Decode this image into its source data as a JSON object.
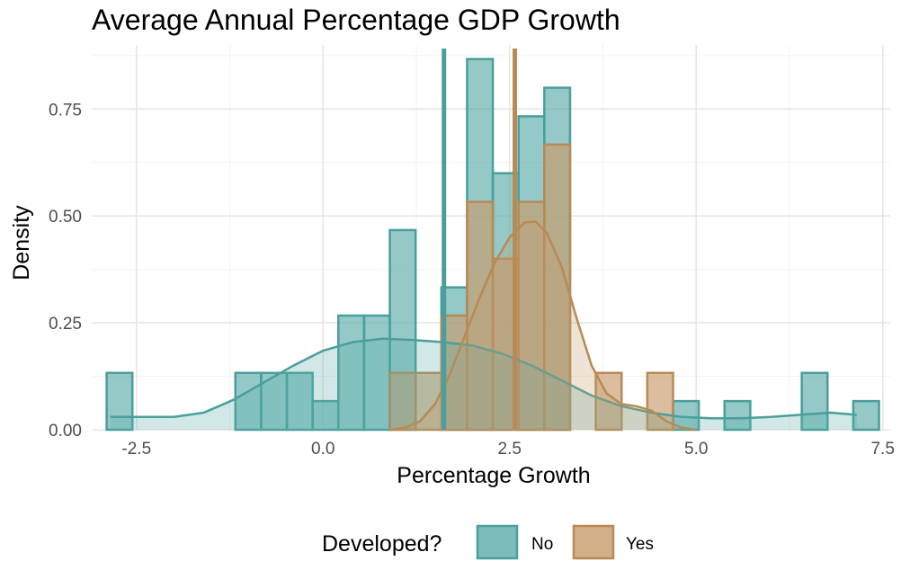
{
  "chart_data": {
    "type": "histogram",
    "title": "Average Annual Percentage GDP Growth",
    "xlabel": "Percentage Growth",
    "ylabel": "Density",
    "xlim": [
      -3.1,
      7.6
    ],
    "ylim": [
      0,
      0.9
    ],
    "x_ticks": [
      {
        "value": -2.5,
        "label": "-2.5"
      },
      {
        "value": 0.0,
        "label": "0.0"
      },
      {
        "value": 2.5,
        "label": "2.5"
      },
      {
        "value": 5.0,
        "label": "5.0"
      },
      {
        "value": 7.5,
        "label": "7.5"
      }
    ],
    "y_ticks": [
      {
        "value": 0.0,
        "label": "0.00"
      },
      {
        "value": 0.25,
        "label": "0.25"
      },
      {
        "value": 0.5,
        "label": "0.50"
      },
      {
        "value": 0.75,
        "label": "0.75"
      }
    ],
    "grid": true,
    "legend": {
      "title": "Developed?",
      "position": "bottom"
    },
    "bin_width": 0.345,
    "series": [
      {
        "name": "No",
        "fill": "#5aaca9",
        "stroke": "#4a9e9b",
        "mean": 1.62,
        "bins": [
          {
            "x0": -2.9,
            "density": 0.133
          },
          {
            "x0": -1.175,
            "density": 0.133
          },
          {
            "x0": -0.83,
            "density": 0.133
          },
          {
            "x0": -0.485,
            "density": 0.133
          },
          {
            "x0": -0.14,
            "density": 0.067
          },
          {
            "x0": 0.205,
            "density": 0.267
          },
          {
            "x0": 0.55,
            "density": 0.267
          },
          {
            "x0": 0.895,
            "density": 0.467
          },
          {
            "x0": 1.585,
            "density": 0.333
          },
          {
            "x0": 1.93,
            "density": 0.867
          },
          {
            "x0": 2.275,
            "density": 0.6
          },
          {
            "x0": 2.62,
            "density": 0.733
          },
          {
            "x0": 2.965,
            "density": 0.8
          },
          {
            "x0": 4.69,
            "density": 0.067
          },
          {
            "x0": 5.38,
            "density": 0.067
          },
          {
            "x0": 6.415,
            "density": 0.133
          },
          {
            "x0": 7.105,
            "density": 0.067
          }
        ],
        "density_curve": [
          [
            -2.85,
            0.03
          ],
          [
            -2.4,
            0.03
          ],
          [
            -2.0,
            0.03
          ],
          [
            -1.6,
            0.04
          ],
          [
            -1.2,
            0.07
          ],
          [
            -0.8,
            0.11
          ],
          [
            -0.4,
            0.15
          ],
          [
            0.0,
            0.185
          ],
          [
            0.4,
            0.205
          ],
          [
            0.8,
            0.213
          ],
          [
            1.2,
            0.21
          ],
          [
            1.6,
            0.205
          ],
          [
            2.0,
            0.197
          ],
          [
            2.4,
            0.178
          ],
          [
            2.8,
            0.15
          ],
          [
            3.2,
            0.115
          ],
          [
            3.6,
            0.08
          ],
          [
            4.0,
            0.055
          ],
          [
            4.4,
            0.04
          ],
          [
            4.8,
            0.03
          ],
          [
            5.2,
            0.027
          ],
          [
            5.6,
            0.027
          ],
          [
            6.0,
            0.03
          ],
          [
            6.4,
            0.035
          ],
          [
            6.8,
            0.04
          ],
          [
            7.15,
            0.035
          ]
        ]
      },
      {
        "name": "Yes",
        "fill": "#c79b6b",
        "stroke": "#b88a55",
        "mean": 2.57,
        "bins": [
          {
            "x0": 0.895,
            "density": 0.133
          },
          {
            "x0": 1.24,
            "density": 0.133
          },
          {
            "x0": 1.585,
            "density": 0.267
          },
          {
            "x0": 1.93,
            "density": 0.533
          },
          {
            "x0": 2.275,
            "density": 0.4
          },
          {
            "x0": 2.62,
            "density": 0.533
          },
          {
            "x0": 2.965,
            "density": 0.667
          },
          {
            "x0": 3.655,
            "density": 0.133
          },
          {
            "x0": 4.345,
            "density": 0.133
          }
        ],
        "density_curve": [
          [
            0.9,
            0.0
          ],
          [
            1.1,
            0.005
          ],
          [
            1.3,
            0.02
          ],
          [
            1.5,
            0.06
          ],
          [
            1.7,
            0.13
          ],
          [
            1.9,
            0.22
          ],
          [
            2.1,
            0.31
          ],
          [
            2.3,
            0.39
          ],
          [
            2.5,
            0.45
          ],
          [
            2.7,
            0.485
          ],
          [
            2.85,
            0.487
          ],
          [
            3.0,
            0.46
          ],
          [
            3.2,
            0.38
          ],
          [
            3.4,
            0.26
          ],
          [
            3.6,
            0.15
          ],
          [
            3.8,
            0.085
          ],
          [
            4.0,
            0.06
          ],
          [
            4.2,
            0.055
          ],
          [
            4.4,
            0.045
          ],
          [
            4.6,
            0.02
          ],
          [
            4.8,
            0.005
          ],
          [
            5.0,
            0.0
          ]
        ]
      }
    ]
  }
}
